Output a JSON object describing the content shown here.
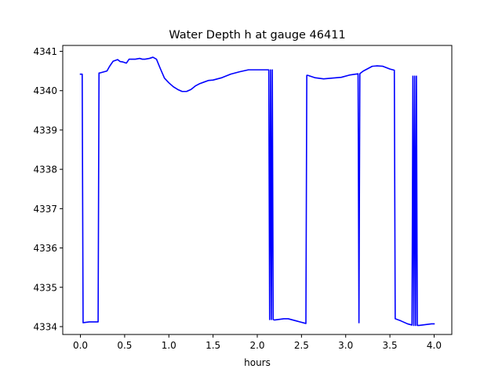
{
  "chart_data": {
    "type": "line",
    "title": "Water Depth h at gauge 46411",
    "xlabel": "hours",
    "ylabel": "",
    "xlim": [
      -0.2,
      4.2
    ],
    "ylim": [
      4333.8,
      4341.15
    ],
    "xticks": [
      0.0,
      0.5,
      1.0,
      1.5,
      2.0,
      2.5,
      3.0,
      3.5,
      4.0
    ],
    "xtick_labels": [
      "0.0",
      "0.5",
      "1.0",
      "1.5",
      "2.0",
      "2.5",
      "3.0",
      "3.5",
      "4.0"
    ],
    "yticks": [
      4334,
      4335,
      4336,
      4337,
      4338,
      4339,
      4340,
      4341
    ],
    "ytick_labels": [
      "4334",
      "4335",
      "4336",
      "4337",
      "4338",
      "4339",
      "4340",
      "4341"
    ],
    "grid": false,
    "series": [
      {
        "color": "#0000ff",
        "x": [
          0.0,
          0.02,
          0.03,
          0.1,
          0.2,
          0.21,
          0.22,
          0.3,
          0.33,
          0.37,
          0.42,
          0.45,
          0.48,
          0.52,
          0.55,
          0.58,
          0.62,
          0.67,
          0.7,
          0.73,
          0.78,
          0.82,
          0.86,
          0.9,
          0.95,
          1.0,
          1.05,
          1.1,
          1.15,
          1.2,
          1.25,
          1.3,
          1.35,
          1.4,
          1.45,
          1.5,
          1.6,
          1.7,
          1.8,
          1.9,
          2.0,
          2.13,
          2.14,
          2.15,
          2.16,
          2.17,
          2.18,
          2.19,
          2.2,
          2.3,
          2.35,
          2.45,
          2.55,
          2.56,
          2.57,
          2.65,
          2.75,
          2.85,
          2.95,
          3.05,
          3.14,
          3.15,
          3.16,
          3.17,
          3.2,
          3.3,
          3.35,
          3.42,
          3.5,
          3.55,
          3.56,
          3.62,
          3.7,
          3.75,
          3.76,
          3.77,
          3.78,
          3.79,
          3.8,
          3.81,
          3.82,
          3.83,
          3.9,
          3.97,
          4.0
        ],
        "y": [
          4340.42,
          4340.42,
          4334.1,
          4334.12,
          4334.12,
          4340.45,
          4340.45,
          4340.5,
          4340.62,
          4340.75,
          4340.79,
          4340.74,
          4340.73,
          4340.7,
          4340.8,
          4340.8,
          4340.8,
          4340.82,
          4340.8,
          4340.8,
          4340.82,
          4340.85,
          4340.8,
          4340.58,
          4340.32,
          4340.2,
          4340.1,
          4340.03,
          4339.98,
          4339.98,
          4340.03,
          4340.12,
          4340.18,
          4340.22,
          4340.26,
          4340.27,
          4340.33,
          4340.42,
          4340.48,
          4340.53,
          4340.53,
          4340.53,
          4334.18,
          4340.53,
          4334.18,
          4340.53,
          4334.18,
          4334.17,
          4334.17,
          4334.2,
          4334.2,
          4334.14,
          4334.08,
          4340.39,
          4340.39,
          4340.33,
          4340.3,
          4340.32,
          4340.34,
          4340.4,
          4340.43,
          4334.1,
          4340.43,
          4340.45,
          4340.5,
          4340.62,
          4340.63,
          4340.62,
          4340.55,
          4340.52,
          4334.2,
          4334.15,
          4334.07,
          4334.04,
          4340.37,
          4334.03,
          4340.37,
          4334.03,
          4340.37,
          4334.03,
          4334.03,
          4334.03,
          4334.05,
          4334.07,
          4334.07
        ]
      }
    ]
  }
}
